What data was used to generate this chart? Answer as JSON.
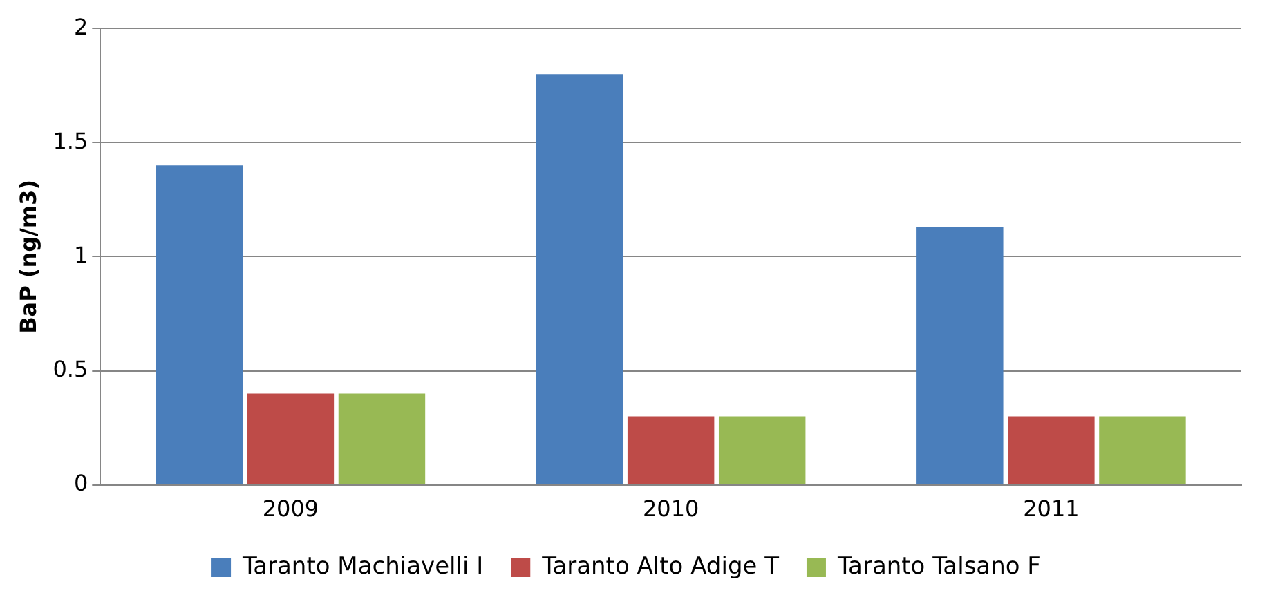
{
  "chart_data": {
    "type": "bar",
    "ylabel": "BaP (ng/m3)",
    "categories": [
      "2009",
      "2010",
      "2011"
    ],
    "series": [
      {
        "name": "Taranto Machiavelli I",
        "color": "#4a7ebb",
        "values": [
          1.4,
          1.8,
          1.13
        ]
      },
      {
        "name": "Taranto Alto Adige T",
        "color": "#be4b48",
        "values": [
          0.4,
          0.3,
          0.3
        ]
      },
      {
        "name": "Taranto Talsano F",
        "color": "#98b954",
        "values": [
          0.4,
          0.3,
          0.3
        ]
      }
    ],
    "ylim": [
      0,
      2
    ],
    "yticks": [
      0,
      0.5,
      1,
      1.5,
      2
    ],
    "grid": "y",
    "legend": "bottom"
  }
}
